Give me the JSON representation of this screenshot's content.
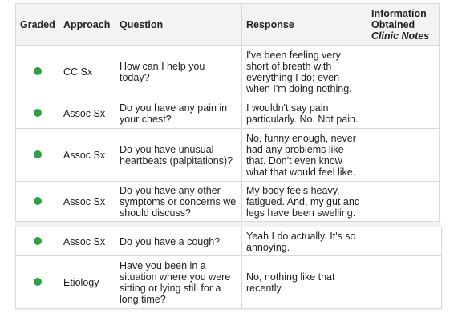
{
  "colors": {
    "graded_dot": "#2ea043",
    "header_bg": "#f3f3f3",
    "border": "#d9d9d9"
  },
  "headers": {
    "graded": "Graded",
    "approach": "Approach",
    "question": "Question",
    "response": "Response",
    "info_line1": "Information",
    "info_line2": "Obtained",
    "info_line3": "Clinic Notes"
  },
  "rows": [
    {
      "approach": "CC Sx",
      "question": "How can I help you today?",
      "response": "I've been feeling very short of breath with everything I do; even when I'm doing nothing.",
      "info": ""
    },
    {
      "approach": "Assoc Sx",
      "question": "Do you have any pain in your chest?",
      "response": "I wouldn't say pain particularly. No. Not pain.",
      "info": ""
    },
    {
      "approach": "Assoc Sx",
      "question": "Do you have unusual heartbeats (palpitations)?",
      "response": "No, funny enough, never had any problems like that. Don't even know what that would feel like.",
      "info": ""
    },
    {
      "approach": "Assoc Sx",
      "question": "Do you have any other symptoms or concerns we should discuss?",
      "response": "My body feels heavy, fatigued. And, my gut and legs have been swelling.",
      "info": ""
    },
    {
      "approach": "Assoc Sx",
      "question": "Do you have a cough?",
      "response": "Yeah I do actually. It's so annoying.",
      "info": ""
    },
    {
      "approach": "Etiology",
      "question": "Have you been in a situation where you were sitting or lying still for a long time?",
      "response": "No, nothing like that recently.",
      "info": ""
    }
  ]
}
